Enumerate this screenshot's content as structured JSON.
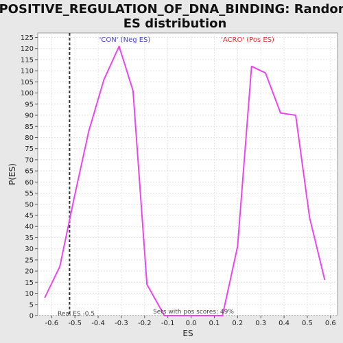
{
  "chart_data": {
    "type": "line",
    "title_lines": [
      "POSITIVE_REGULATION_OF_DNA_BINDING: Random",
      "ES distribution"
    ],
    "xlabel": "ES",
    "ylabel": "P(ES)",
    "xlim": [
      -0.66,
      0.63
    ],
    "ylim": [
      0,
      127
    ],
    "x_ticks": [
      -0.6,
      -0.5,
      -0.4,
      -0.3,
      -0.2,
      -0.1,
      0.0,
      0.1,
      0.2,
      0.3,
      0.4,
      0.5,
      0.6
    ],
    "x_tick_labels": [
      "-0.6",
      "-0.5",
      "-0.4",
      "-0.3",
      "-0.2",
      "-0.1",
      "0.0",
      "0.1",
      "0.2",
      "0.3",
      "0.4",
      "0.5",
      "0.6"
    ],
    "y_ticks": [
      0,
      5,
      10,
      15,
      20,
      25,
      30,
      35,
      40,
      45,
      50,
      55,
      60,
      65,
      70,
      75,
      80,
      85,
      90,
      95,
      100,
      105,
      110,
      115,
      120,
      125
    ],
    "grid": true,
    "line_color": "#ee44ee",
    "series": [
      {
        "x": [
          -0.63,
          -0.565,
          -0.505,
          -0.44,
          -0.375,
          -0.31,
          -0.25,
          -0.19,
          -0.115,
          0.0,
          0.135,
          0.2,
          0.26,
          0.32,
          0.385,
          0.45,
          0.51,
          0.575
        ],
        "values": [
          8,
          22,
          52,
          83,
          106,
          121,
          101,
          14,
          0,
          0,
          0,
          31,
          112,
          109,
          91,
          90,
          44,
          16
        ]
      }
    ],
    "annotations": {
      "neg_label": "'CON' (Neg ES)",
      "neg_color": "#4444cc",
      "pos_label": "'ACRO' (Pos ES)",
      "pos_color": "#dd3333",
      "real_es_label": "Real ES -0.5",
      "real_es_x": -0.523,
      "sets_note": "Sets with pos scores: 49%"
    }
  }
}
